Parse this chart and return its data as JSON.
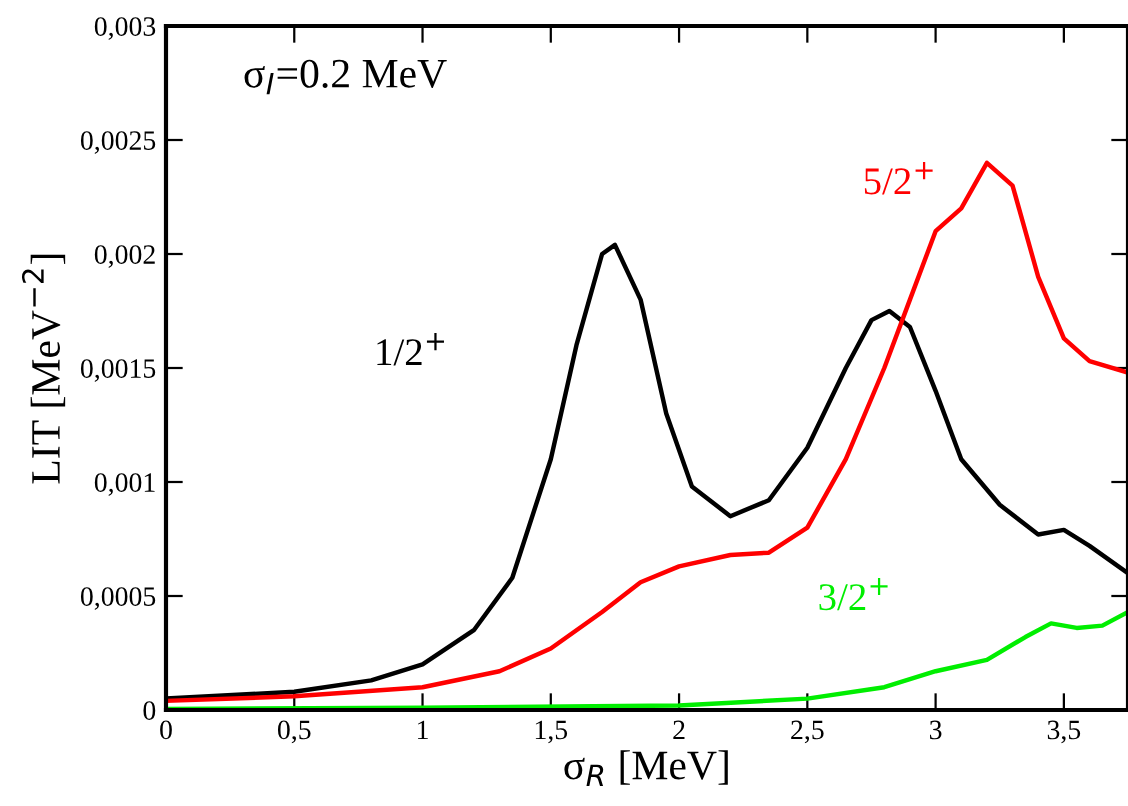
{
  "chart_data": {
    "type": "line",
    "xlabel": "σ$_{R}$ [MeV]",
    "ylabel": "LIT [MeV$^{−2}$]",
    "annotations": [
      "σ$_{I}$=0.2 MeV"
    ],
    "xlim": [
      0,
      3.75
    ],
    "ylim": [
      0,
      0.003
    ],
    "xticks": [
      0,
      {
        "value": 0.5,
        "label": "0,5"
      },
      1,
      {
        "value": 1.5,
        "label": "1,5"
      },
      2,
      {
        "value": 2.5,
        "label": "2,5"
      },
      3,
      {
        "value": 3.5,
        "label": "3,5"
      }
    ],
    "yticks": [
      0,
      {
        "value": 0.0005,
        "label": "0,0005"
      },
      {
        "value": 0.001,
        "label": "0,001"
      },
      {
        "value": 0.0015,
        "label": "0,0015"
      },
      {
        "value": 0.002,
        "label": "0,002"
      },
      {
        "value": 0.0025,
        "label": "0,0025"
      },
      {
        "value": 0.003,
        "label": "0,003"
      }
    ],
    "grid": false,
    "legend": false,
    "marker": "none",
    "line_style": "solid",
    "series": [
      {
        "name": "1/2$^{+}$",
        "color": "#000000",
        "x": [
          0,
          0.5,
          0.8,
          1.0,
          1.2,
          1.35,
          1.5,
          1.6,
          1.7,
          1.75,
          1.85,
          1.95,
          2.05,
          2.2,
          2.35,
          2.5,
          2.65,
          2.75,
          2.82,
          2.9,
          3.0,
          3.1,
          3.25,
          3.4,
          3.5,
          3.6,
          3.75
        ],
        "values": [
          5e-05,
          8e-05,
          0.00013,
          0.0002,
          0.00035,
          0.00058,
          0.0011,
          0.0016,
          0.002,
          0.00204,
          0.0018,
          0.0013,
          0.00098,
          0.00085,
          0.00092,
          0.00115,
          0.0015,
          0.00171,
          0.00175,
          0.00168,
          0.0014,
          0.0011,
          0.0009,
          0.00077,
          0.00079,
          0.00072,
          0.0006
        ]
      },
      {
        "name": "5/2$^{+}$",
        "color": "#ff0000",
        "x": [
          0,
          0.5,
          1.0,
          1.3,
          1.5,
          1.7,
          1.85,
          2.0,
          2.2,
          2.35,
          2.5,
          2.65,
          2.8,
          2.9,
          3.0,
          3.1,
          3.2,
          3.3,
          3.4,
          3.5,
          3.6,
          3.75
        ],
        "values": [
          4e-05,
          6e-05,
          0.0001,
          0.00017,
          0.00027,
          0.00043,
          0.00056,
          0.00063,
          0.00068,
          0.00069,
          0.0008,
          0.0011,
          0.0015,
          0.0018,
          0.0021,
          0.0022,
          0.0024,
          0.0023,
          0.0019,
          0.00163,
          0.00153,
          0.00148
        ]
      },
      {
        "name": "3/2$^{+}$",
        "color": "#00ee00",
        "x": [
          0,
          1.0,
          2.0,
          2.5,
          2.8,
          3.0,
          3.2,
          3.35,
          3.45,
          3.55,
          3.65,
          3.75
        ],
        "values": [
          5e-06,
          1e-05,
          2e-05,
          5e-05,
          0.0001,
          0.00017,
          0.00022,
          0.00032,
          0.00038,
          0.00036,
          0.00037,
          0.00043
        ]
      }
    ]
  }
}
